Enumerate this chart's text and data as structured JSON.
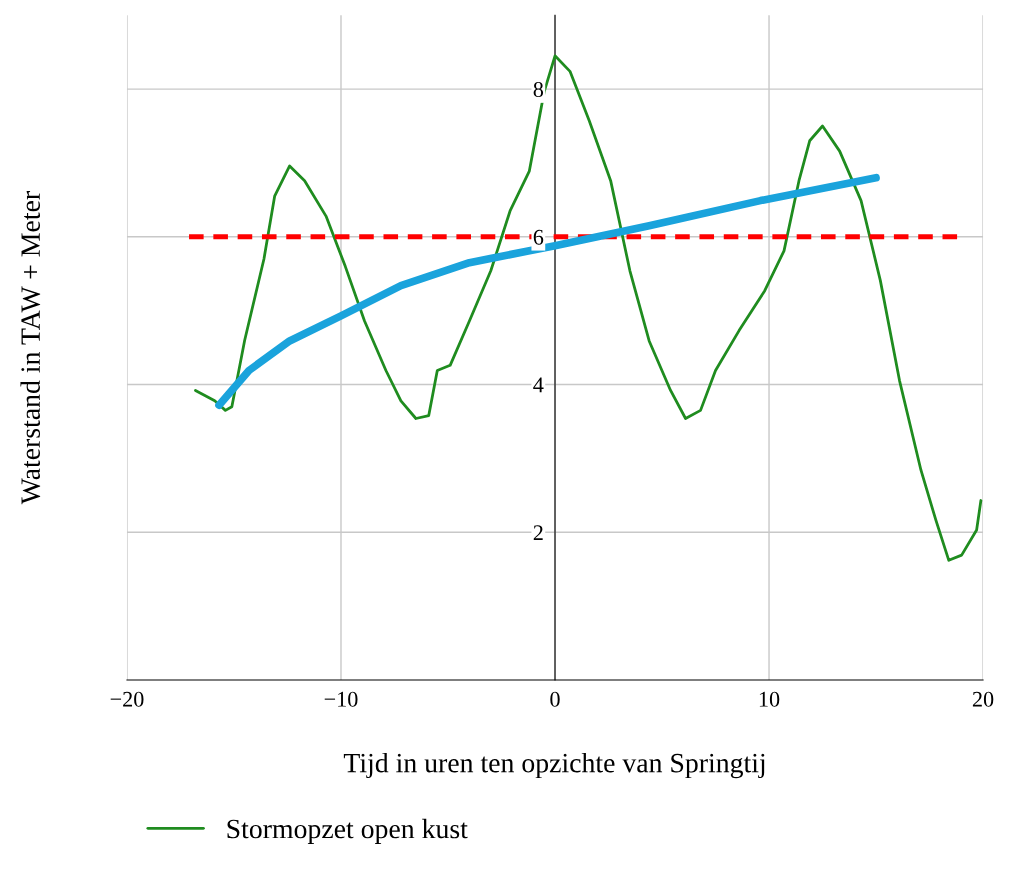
{
  "chart_data": {
    "type": "line",
    "xlabel": "Tijd in uren ten opzichte van Springtij",
    "ylabel": "Waterstand in TAW + Meter",
    "xlim": [
      -20,
      20
    ],
    "ylim": [
      0,
      9
    ],
    "xticks": [
      {
        "value": -20,
        "label": "−20"
      },
      {
        "value": -10,
        "label": "−10"
      },
      0,
      10,
      20
    ],
    "yticks": [
      2,
      4,
      6,
      8
    ],
    "grid": true,
    "legend": "bottom",
    "series": [
      {
        "name": "Stormopzet open kust",
        "color": "#1f8c1f",
        "line_style": "solid",
        "x": [
          -16.8,
          -15.9,
          -15.4,
          -15.1,
          -14.5,
          -13.6,
          -13.1,
          -12.4,
          -11.7,
          -10.7,
          -9.8,
          -8.9,
          -7.9,
          -7.2,
          -6.5,
          -5.9,
          -5.5,
          -4.9,
          -4.0,
          -3.0,
          -2.1,
          -1.2,
          -0.5,
          0,
          0.7,
          1.6,
          2.6,
          3.5,
          4.4,
          5.4,
          6.1,
          6.8,
          7.5,
          8.6,
          9.8,
          10.7,
          11.4,
          11.9,
          12.5,
          13.3,
          14.3,
          15.2,
          16.1,
          17.1,
          17.8,
          18.4,
          19.0,
          19.7,
          19.9
        ],
        "values": [
          3.92,
          3.78,
          3.65,
          3.7,
          4.6,
          5.7,
          6.55,
          6.96,
          6.76,
          6.28,
          5.6,
          4.86,
          4.19,
          3.78,
          3.54,
          3.58,
          4.19,
          4.26,
          4.86,
          5.54,
          6.35,
          6.89,
          7.97,
          8.45,
          8.24,
          7.57,
          6.76,
          5.54,
          4.59,
          3.92,
          3.54,
          3.65,
          4.19,
          4.73,
          5.27,
          5.81,
          6.76,
          7.3,
          7.5,
          7.16,
          6.49,
          5.41,
          4.05,
          2.84,
          2.16,
          1.62,
          1.69,
          2.03,
          2.43
        ]
      },
      {
        "color": "#ff0000",
        "line_style": "dashed",
        "x": [
          -17.1,
          18.8
        ],
        "values": [
          6,
          6
        ]
      },
      {
        "color": "#1aa3dc",
        "line_style": "solid",
        "x": [
          -15.7,
          -14.3,
          -12.4,
          -10.0,
          -7.2,
          -4.0,
          0,
          4.4,
          9.6,
          15.0
        ],
        "values": [
          3.72,
          4.19,
          4.59,
          4.93,
          5.34,
          5.65,
          5.88,
          6.15,
          6.49,
          6.8
        ]
      }
    ]
  }
}
